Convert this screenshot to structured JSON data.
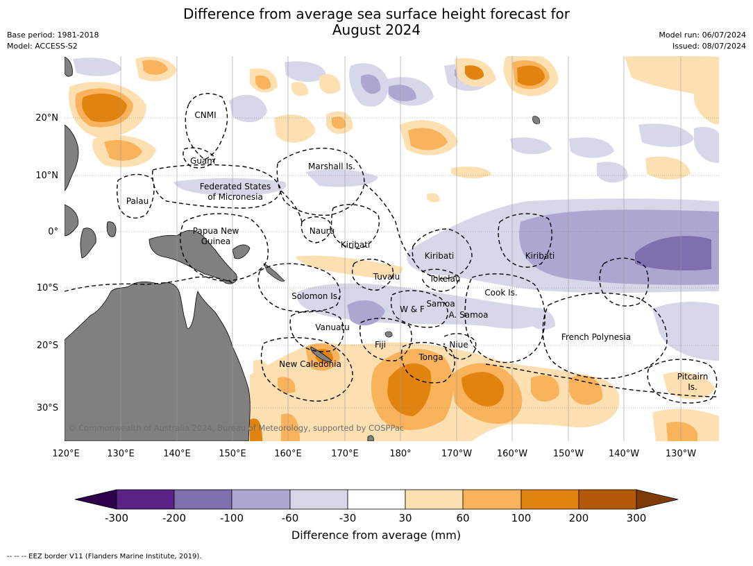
{
  "title": {
    "line1": "Difference from average sea surface height forecast for",
    "line2": "August 2024"
  },
  "meta_left": {
    "line1": "Base period: 1981-2018",
    "line2": "Model: ACCESS-S2"
  },
  "meta_right": {
    "line1": "Model run: 06/07/2024",
    "line2": "Issued: 08/07/2024"
  },
  "map": {
    "lat_labels": [
      "20°N",
      "10°N",
      "0°",
      "10°S",
      "20°S",
      "30°S"
    ],
    "lon_labels": [
      "120°E",
      "130°E",
      "140°E",
      "150°E",
      "160°E",
      "170°E",
      "180°",
      "170°W",
      "160°W",
      "150°W",
      "140°W",
      "130°W"
    ],
    "regions": [
      "CNMI",
      "Guam",
      "Marshall Is.",
      "Federated States",
      "of Micronesia",
      "Palau",
      "Papua New",
      "Guinea",
      "Nauru",
      "Kiribati",
      "Kiribati",
      "Kiribati",
      "Tuvalu",
      "Tokelau",
      "Solomon Is.",
      "Samoa",
      "W & F",
      "A. Samoa",
      "Cook Is.",
      "Vanuatu",
      "Fiji",
      "Niue",
      "French Polynesia",
      "Tonga",
      "New Caledonia",
      "Pitcairn",
      "Is."
    ],
    "copyright": "© Commonwealth of Australia 2024, Bureau of Meteorology, supported by COSPPac"
  },
  "colorbar": {
    "labels": [
      "-300",
      "-200",
      "-100",
      "-60",
      "-30",
      "30",
      "60",
      "100",
      "200",
      "300"
    ],
    "colors": [
      "#5a2287",
      "#7f6fae",
      "#aca6d0",
      "#d7d7ea",
      "#ffffff",
      "#fde0b2",
      "#f9b35d",
      "#e0830f",
      "#b35806"
    ],
    "extend_low": "#2d004b",
    "extend_high": "#7f3b08",
    "title": "Difference from average (mm)"
  },
  "footnote": "-- -- -- EEZ border V11 (Flanders Marine Institute, 2019).",
  "land_color": "#808080"
}
